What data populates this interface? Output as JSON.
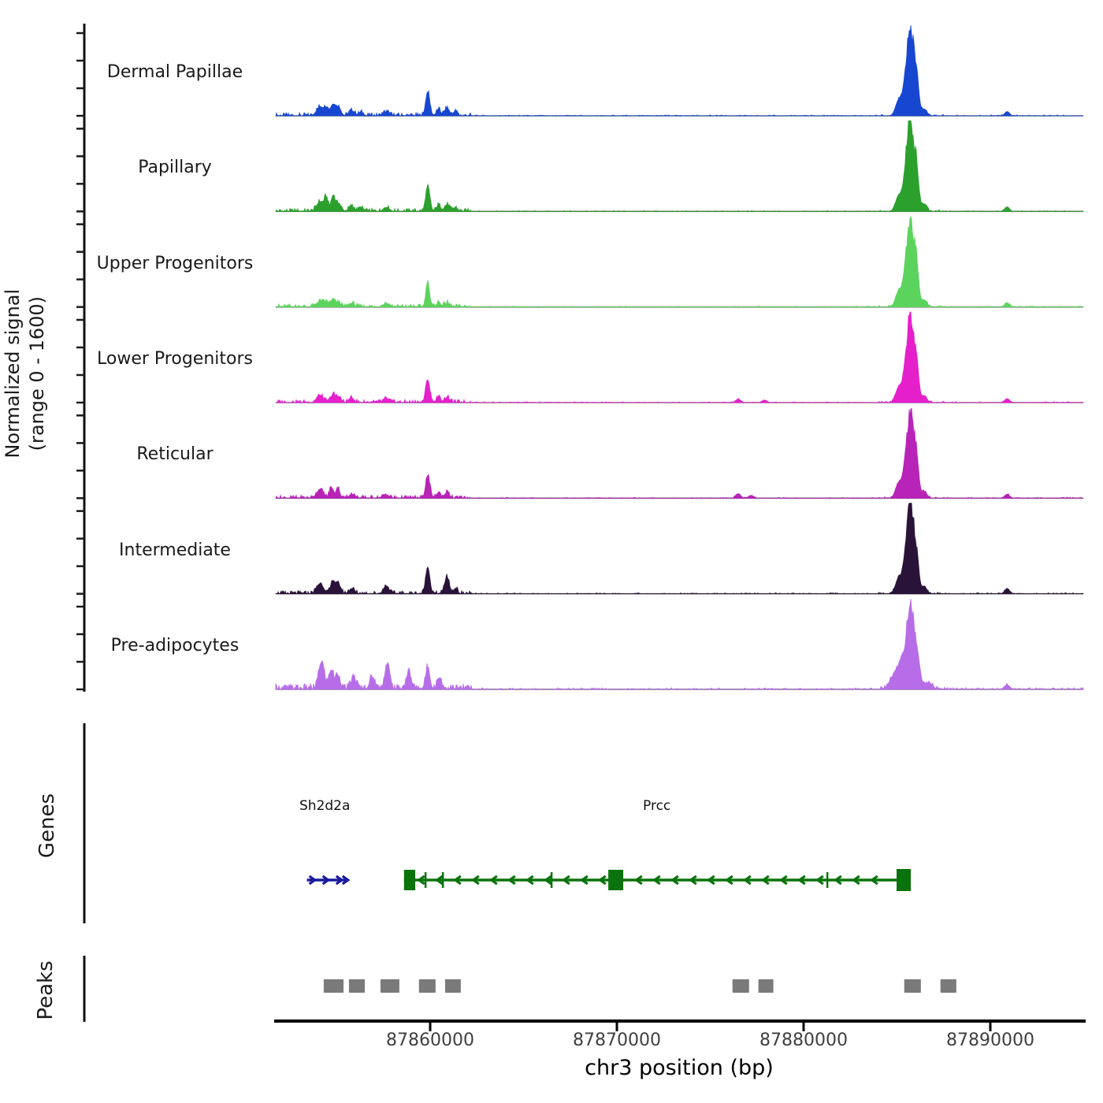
{
  "chart_data": {
    "type": "area",
    "title": "",
    "xlabel": "chr3 position (bp)",
    "ylabel_lines": [
      "Normalized signal",
      "(range 0 - 1600)"
    ],
    "ylim": [
      0,
      1600
    ],
    "xlim": [
      87851730,
      87894980
    ],
    "grid": false,
    "x_ticks": [
      {
        "label": "87860000",
        "bp": 87860000
      },
      {
        "label": "87870000",
        "bp": 87870000
      },
      {
        "label": "87880000",
        "bp": 87880000
      },
      {
        "label": "87890000",
        "bp": 87890000
      }
    ],
    "tracks": [
      {
        "name": "Dermal Papillae",
        "color": "#1747d1",
        "noise": 1,
        "peaks": [
          [
            87854100,
            160,
            180
          ],
          [
            87854450,
            130,
            120
          ],
          [
            87854800,
            200,
            130
          ],
          [
            87855100,
            150,
            120
          ],
          [
            87855800,
            90,
            150
          ],
          [
            87856300,
            60,
            120
          ],
          [
            87857650,
            70,
            160
          ],
          [
            87859870,
            420,
            110
          ],
          [
            87860450,
            110,
            110
          ],
          [
            87860900,
            130,
            130
          ],
          [
            87861350,
            80,
            110
          ],
          [
            87885100,
            280,
            170
          ],
          [
            87885450,
            450,
            140
          ],
          [
            87885730,
            1500,
            170
          ],
          [
            87886050,
            650,
            120
          ],
          [
            87886450,
            120,
            150
          ],
          [
            87890900,
            70,
            130
          ]
        ]
      },
      {
        "name": "Papillary",
        "color": "#2ca02c",
        "noise": 1,
        "peaks": [
          [
            87854100,
            170,
            180
          ],
          [
            87854430,
            230,
            100
          ],
          [
            87854800,
            280,
            110
          ],
          [
            87855100,
            140,
            120
          ],
          [
            87855800,
            90,
            150
          ],
          [
            87856300,
            60,
            120
          ],
          [
            87857650,
            70,
            160
          ],
          [
            87859870,
            430,
            110
          ],
          [
            87860450,
            110,
            110
          ],
          [
            87860900,
            120,
            130
          ],
          [
            87861350,
            70,
            110
          ],
          [
            87885100,
            280,
            170
          ],
          [
            87885450,
            450,
            140
          ],
          [
            87885730,
            1560,
            170
          ],
          [
            87886050,
            650,
            120
          ],
          [
            87886450,
            130,
            150
          ],
          [
            87890900,
            80,
            130
          ]
        ]
      },
      {
        "name": "Upper Progenitors",
        "color": "#5cd35c",
        "noise": 1,
        "peaks": [
          [
            87854100,
            100,
            180
          ],
          [
            87854450,
            80,
            120
          ],
          [
            87854800,
            110,
            130
          ],
          [
            87855100,
            70,
            120
          ],
          [
            87855800,
            60,
            150
          ],
          [
            87857650,
            60,
            160
          ],
          [
            87859870,
            440,
            95
          ],
          [
            87860450,
            80,
            110
          ],
          [
            87860900,
            70,
            130
          ],
          [
            87885100,
            280,
            170
          ],
          [
            87885450,
            450,
            140
          ],
          [
            87885730,
            1560,
            170
          ],
          [
            87886050,
            650,
            120
          ],
          [
            87886450,
            120,
            150
          ],
          [
            87890900,
            70,
            130
          ]
        ]
      },
      {
        "name": "Lower Progenitors",
        "color": "#e520cb",
        "noise": 1,
        "peaks": [
          [
            87854100,
            120,
            180
          ],
          [
            87854800,
            140,
            130
          ],
          [
            87855100,
            100,
            120
          ],
          [
            87855800,
            70,
            150
          ],
          [
            87857650,
            60,
            160
          ],
          [
            87859870,
            400,
            110
          ],
          [
            87860450,
            90,
            110
          ],
          [
            87860900,
            90,
            130
          ],
          [
            87876500,
            60,
            140
          ],
          [
            87877900,
            45,
            130
          ],
          [
            87885100,
            270,
            170
          ],
          [
            87885450,
            440,
            140
          ],
          [
            87885730,
            1480,
            170
          ],
          [
            87886050,
            620,
            120
          ],
          [
            87886450,
            120,
            150
          ],
          [
            87890900,
            70,
            130
          ]
        ]
      },
      {
        "name": "Reticular",
        "color": "#b823b8",
        "noise": 1,
        "peaks": [
          [
            87854100,
            150,
            180
          ],
          [
            87854700,
            190,
            100
          ],
          [
            87855050,
            190,
            100
          ],
          [
            87855800,
            70,
            150
          ],
          [
            87857650,
            60,
            160
          ],
          [
            87859870,
            400,
            110
          ],
          [
            87860450,
            100,
            110
          ],
          [
            87860900,
            100,
            130
          ],
          [
            87876500,
            80,
            130
          ],
          [
            87877200,
            50,
            130
          ],
          [
            87885100,
            270,
            170
          ],
          [
            87885450,
            440,
            140
          ],
          [
            87885730,
            1460,
            170
          ],
          [
            87886050,
            620,
            120
          ],
          [
            87886450,
            120,
            150
          ],
          [
            87890900,
            70,
            130
          ]
        ]
      },
      {
        "name": "Intermediate",
        "color": "#2a1338",
        "noise": 1,
        "peaks": [
          [
            87854100,
            180,
            180
          ],
          [
            87854800,
            230,
            120
          ],
          [
            87855100,
            160,
            120
          ],
          [
            87855800,
            90,
            150
          ],
          [
            87857650,
            140,
            140
          ],
          [
            87859870,
            470,
            110
          ],
          [
            87860900,
            300,
            120
          ],
          [
            87861350,
            90,
            110
          ],
          [
            87885100,
            280,
            170
          ],
          [
            87885450,
            460,
            140
          ],
          [
            87885730,
            1520,
            170
          ],
          [
            87886050,
            640,
            120
          ],
          [
            87886450,
            130,
            150
          ],
          [
            87890900,
            90,
            130
          ]
        ]
      },
      {
        "name": "Pre-adipocytes",
        "color": "#b76de8",
        "noise": 1.8,
        "peaks": [
          [
            87854180,
            480,
            150
          ],
          [
            87854700,
            340,
            120
          ],
          [
            87855050,
            250,
            120
          ],
          [
            87855900,
            200,
            140
          ],
          [
            87856900,
            200,
            140
          ],
          [
            87857700,
            440,
            130
          ],
          [
            87858850,
            300,
            130
          ],
          [
            87859870,
            390,
            110
          ],
          [
            87860500,
            200,
            120
          ],
          [
            87884900,
            250,
            260
          ],
          [
            87885300,
            450,
            200
          ],
          [
            87885730,
            1500,
            180
          ],
          [
            87886100,
            520,
            150
          ],
          [
            87886700,
            120,
            200
          ],
          [
            87890900,
            80,
            140
          ]
        ]
      }
    ],
    "genes": {
      "section_label": "Genes",
      "items": [
        {
          "name": "Sh2d2a",
          "color": "#1b1b9e",
          "strand": "+",
          "start_bp": 87853400,
          "end_bp": 87855600
        },
        {
          "name": "Prcc",
          "color": "#0b730b",
          "strand": "-",
          "start_bp": 87858600,
          "end_bp": 87885740,
          "exon_blocks": [
            [
              87858600,
              87859200
            ],
            [
              87869540,
              87870340
            ],
            [
              87884980,
              87885740
            ]
          ],
          "exon_ticks": [
            87859750,
            87860680,
            87866500,
            87881270
          ]
        }
      ]
    },
    "peaks_section": {
      "label": "Peaks",
      "color": "#7a7a7a",
      "intervals": [
        [
          87854300,
          87855360
        ],
        [
          87855650,
          87856500
        ],
        [
          87857340,
          87858350
        ],
        [
          87859400,
          87860290
        ],
        [
          87860800,
          87861640
        ],
        [
          87876190,
          87877080
        ],
        [
          87877580,
          87878380
        ],
        [
          87885390,
          87886280
        ],
        [
          87887330,
          87888180
        ]
      ]
    }
  }
}
